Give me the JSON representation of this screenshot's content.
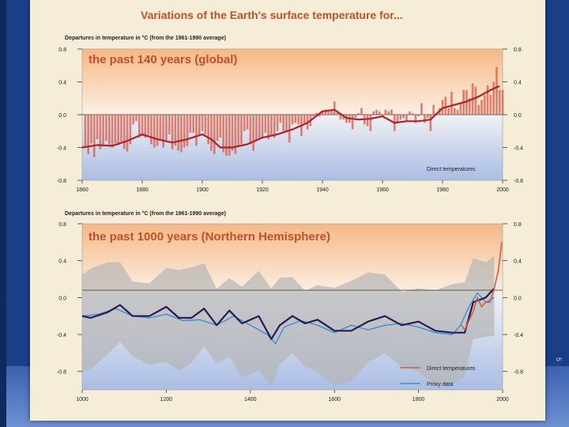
{
  "page": {
    "title": "Variations of the Earth's surface temperature for...",
    "side_note": "5"
  },
  "colors": {
    "slide_background": "#1e4b9a",
    "panel_background": "#f6edd9",
    "title_color": "#c0502a",
    "warm_gradient": "#f6c08c",
    "cool_gradient": "#b6c6e6",
    "direct_bars": "#d65b45",
    "smoothed_global": "#b4202a",
    "proxy_line": "#3d8fd1",
    "smoothed_nh": "#2a1a55",
    "uncertainty_band": "#b5b5b5"
  },
  "chart_data": [
    {
      "type": "bar",
      "title": "the past 140 years (global)",
      "ylabel": "Departures in temperature in °C (from the 1961-1990 average)",
      "xlim": [
        1860,
        2000
      ],
      "ylim": [
        -0.8,
        0.8
      ],
      "x_ticks": [
        "1860",
        "1880",
        "1900",
        "1920",
        "1940",
        "1960",
        "1980",
        "2000"
      ],
      "y_ticks": [
        "0.8",
        "0.4",
        "0.0",
        "-0.4",
        "-0.8"
      ],
      "grid": false,
      "legend": [
        "Direct temperatures"
      ],
      "legend_position": "bottom-right",
      "series": [
        {
          "name": "Direct temperatures",
          "x": [
            1861,
            1862,
            1863,
            1864,
            1865,
            1866,
            1867,
            1868,
            1869,
            1870,
            1871,
            1872,
            1873,
            1874,
            1875,
            1876,
            1877,
            1878,
            1879,
            1880,
            1881,
            1882,
            1883,
            1884,
            1885,
            1886,
            1887,
            1888,
            1889,
            1890,
            1891,
            1892,
            1893,
            1894,
            1895,
            1896,
            1897,
            1898,
            1899,
            1900,
            1901,
            1902,
            1903,
            1904,
            1905,
            1906,
            1907,
            1908,
            1909,
            1910,
            1911,
            1912,
            1913,
            1914,
            1915,
            1916,
            1917,
            1918,
            1919,
            1920,
            1921,
            1922,
            1923,
            1924,
            1925,
            1926,
            1927,
            1928,
            1929,
            1930,
            1931,
            1932,
            1933,
            1934,
            1935,
            1936,
            1937,
            1938,
            1939,
            1940,
            1941,
            1942,
            1943,
            1944,
            1945,
            1946,
            1947,
            1948,
            1949,
            1950,
            1951,
            1952,
            1953,
            1954,
            1955,
            1956,
            1957,
            1958,
            1959,
            1960,
            1961,
            1962,
            1963,
            1964,
            1965,
            1966,
            1967,
            1968,
            1969,
            1970,
            1971,
            1972,
            1973,
            1974,
            1975,
            1976,
            1977,
            1978,
            1979,
            1980,
            1981,
            1982,
            1983,
            1984,
            1985,
            1986,
            1987,
            1988,
            1989,
            1990,
            1991,
            1992,
            1993,
            1994,
            1995,
            1996,
            1997,
            1998,
            1999,
            2000
          ],
          "values": [
            -0.4,
            -0.48,
            -0.35,
            -0.52,
            -0.3,
            -0.42,
            -0.38,
            -0.32,
            -0.36,
            -0.4,
            -0.35,
            -0.37,
            -0.33,
            -0.42,
            -0.45,
            -0.36,
            -0.12,
            -0.08,
            -0.28,
            -0.26,
            -0.28,
            -0.25,
            -0.36,
            -0.4,
            -0.38,
            -0.3,
            -0.4,
            -0.31,
            -0.24,
            -0.42,
            -0.38,
            -0.44,
            -0.46,
            -0.4,
            -0.38,
            -0.22,
            -0.22,
            -0.38,
            -0.26,
            -0.2,
            -0.24,
            -0.36,
            -0.44,
            -0.48,
            -0.32,
            -0.28,
            -0.46,
            -0.5,
            -0.5,
            -0.44,
            -0.48,
            -0.38,
            -0.36,
            -0.2,
            -0.18,
            -0.36,
            -0.44,
            -0.32,
            -0.3,
            -0.28,
            -0.22,
            -0.3,
            -0.26,
            -0.28,
            -0.2,
            -0.1,
            -0.2,
            -0.2,
            -0.34,
            -0.12,
            -0.1,
            -0.12,
            -0.26,
            -0.12,
            -0.18,
            -0.14,
            -0.02,
            0.02,
            -0.02,
            0.04,
            0.06,
            0.04,
            0.06,
            0.16,
            0.04,
            -0.06,
            -0.06,
            -0.1,
            -0.1,
            -0.18,
            -0.04,
            0.02,
            0.08,
            -0.12,
            -0.14,
            -0.2,
            0.04,
            0.06,
            0.04,
            -0.02,
            0.06,
            0.04,
            0.06,
            -0.2,
            -0.1,
            -0.06,
            -0.04,
            -0.08,
            0.04,
            0.02,
            -0.1,
            -0.02,
            0.14,
            -0.1,
            -0.04,
            -0.2,
            0.12,
            0.02,
            0.08,
            0.18,
            0.22,
            0.08,
            0.28,
            0.08,
            0.06,
            0.14,
            0.3,
            0.3,
            0.2,
            0.38,
            0.34,
            0.12,
            0.18,
            0.24,
            0.36,
            0.24,
            0.4,
            0.58,
            0.3,
            0.3
          ]
        },
        {
          "name": "",
          "type": "line",
          "x": [
            1860,
            1865,
            1870,
            1875,
            1880,
            1885,
            1890,
            1895,
            1900,
            1903,
            1906,
            1910,
            1915,
            1920,
            1925,
            1930,
            1935,
            1940,
            1944,
            1948,
            1952,
            1956,
            1960,
            1964,
            1968,
            1972,
            1976,
            1980,
            1984,
            1988,
            1992,
            1996,
            1999
          ],
          "values": [
            -0.4,
            -0.37,
            -0.38,
            -0.32,
            -0.24,
            -0.3,
            -0.34,
            -0.3,
            -0.24,
            -0.3,
            -0.4,
            -0.4,
            -0.36,
            -0.28,
            -0.24,
            -0.18,
            -0.1,
            0.04,
            0.06,
            -0.04,
            -0.06,
            -0.05,
            -0.02,
            -0.1,
            -0.08,
            -0.08,
            -0.06,
            0.08,
            0.12,
            0.16,
            0.22,
            0.3,
            0.35
          ]
        }
      ]
    },
    {
      "type": "line",
      "title": "the past 1000 years (Northern Hemisphere)",
      "ylabel": "Departures in temperature in °C (from the 1961-1990 average)",
      "xlim": [
        1000,
        2000
      ],
      "ylim": [
        -1.0,
        0.8
      ],
      "x_ticks": [
        "1000",
        "1200",
        "1400",
        "1600",
        "1800",
        "2000"
      ],
      "y_ticks": [
        "0.8",
        "0.4",
        "0.0",
        "-0.4",
        "-0.8"
      ],
      "grid": false,
      "legend": [
        "Direct temperatures",
        "Proxy data"
      ],
      "legend_position": "bottom-right",
      "series": [
        {
          "name": "Proxy data",
          "x": [
            1000,
            1040,
            1080,
            1120,
            1160,
            1200,
            1240,
            1280,
            1320,
            1360,
            1400,
            1440,
            1460,
            1480,
            1520,
            1560,
            1600,
            1640,
            1680,
            1720,
            1760,
            1800,
            1840,
            1880,
            1900,
            1920,
            1940,
            1960,
            1980
          ],
          "values": [
            -0.2,
            -0.18,
            -0.12,
            -0.2,
            -0.22,
            -0.18,
            -0.25,
            -0.24,
            -0.3,
            -0.2,
            -0.3,
            -0.4,
            -0.5,
            -0.32,
            -0.25,
            -0.3,
            -0.38,
            -0.3,
            -0.35,
            -0.3,
            -0.28,
            -0.32,
            -0.38,
            -0.4,
            -0.3,
            -0.1,
            0.05,
            -0.05,
            0.0
          ]
        },
        {
          "name": "",
          "x": [
            1000,
            1020,
            1060,
            1090,
            1120,
            1160,
            1200,
            1230,
            1260,
            1290,
            1320,
            1350,
            1380,
            1420,
            1450,
            1470,
            1500,
            1530,
            1560,
            1600,
            1640,
            1680,
            1720,
            1760,
            1800,
            1840,
            1880,
            1910,
            1930,
            1960,
            1980
          ],
          "values": [
            -0.2,
            -0.22,
            -0.16,
            -0.08,
            -0.2,
            -0.2,
            -0.1,
            -0.22,
            -0.22,
            -0.12,
            -0.3,
            -0.14,
            -0.28,
            -0.2,
            -0.45,
            -0.3,
            -0.2,
            -0.28,
            -0.24,
            -0.36,
            -0.36,
            -0.26,
            -0.2,
            -0.3,
            -0.26,
            -0.36,
            -0.38,
            -0.38,
            -0.05,
            0.0,
            0.1
          ]
        },
        {
          "name": "Direct temperatures",
          "x": [
            1902,
            1910,
            1920,
            1930,
            1940,
            1950,
            1960,
            1970,
            1980,
            1990,
            1998
          ],
          "values": [
            -0.3,
            -0.35,
            -0.25,
            -0.15,
            0.0,
            -0.1,
            -0.05,
            -0.05,
            0.1,
            0.3,
            0.6
          ]
        }
      ]
    }
  ]
}
